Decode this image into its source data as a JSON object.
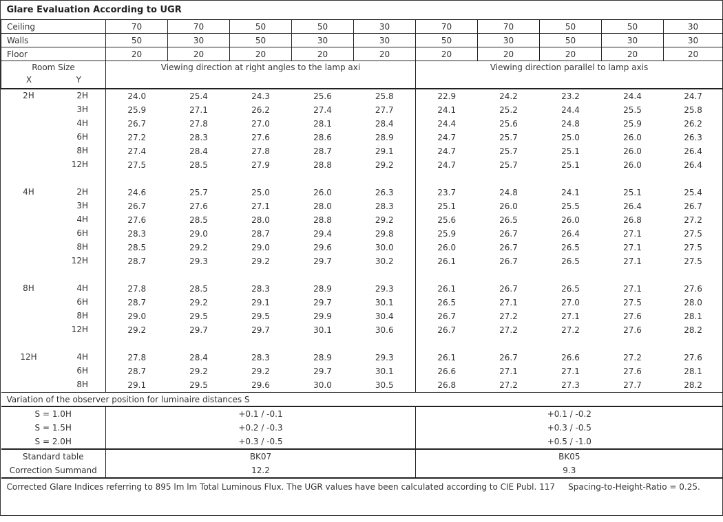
{
  "title": "Glare Evaluation According to UGR",
  "reflectances": [
    {
      "label": "Ceiling",
      "values": [
        "70",
        "70",
        "50",
        "50",
        "30",
        "70",
        "70",
        "50",
        "50",
        "30"
      ]
    },
    {
      "label": "Walls",
      "values": [
        "50",
        "30",
        "50",
        "30",
        "30",
        "50",
        "30",
        "50",
        "30",
        "30"
      ]
    },
    {
      "label": "Floor",
      "values": [
        "20",
        "20",
        "20",
        "20",
        "20",
        "20",
        "20",
        "20",
        "20",
        "20"
      ]
    }
  ],
  "header": {
    "room_size": "Room Size",
    "x": "X",
    "y": "Y",
    "perpendicular": "Viewing direction at right angles to the lamp axi",
    "parallel": "Viewing direction parallel to lamp axis"
  },
  "blocks": [
    {
      "x": "2H",
      "rows": [
        {
          "y": "2H",
          "values": [
            "24.0",
            "25.4",
            "24.3",
            "25.6",
            "25.8",
            "22.9",
            "24.2",
            "23.2",
            "24.4",
            "24.7"
          ]
        },
        {
          "y": "3H",
          "values": [
            "25.9",
            "27.1",
            "26.2",
            "27.4",
            "27.7",
            "24.1",
            "25.2",
            "24.4",
            "25.5",
            "25.8"
          ]
        },
        {
          "y": "4H",
          "values": [
            "26.7",
            "27.8",
            "27.0",
            "28.1",
            "28.4",
            "24.4",
            "25.6",
            "24.8",
            "25.9",
            "26.2"
          ]
        },
        {
          "y": "6H",
          "values": [
            "27.2",
            "28.3",
            "27.6",
            "28.6",
            "28.9",
            "24.7",
            "25.7",
            "25.0",
            "26.0",
            "26.3"
          ]
        },
        {
          "y": "8H",
          "values": [
            "27.4",
            "28.4",
            "27.8",
            "28.7",
            "29.1",
            "24.7",
            "25.7",
            "25.1",
            "26.0",
            "26.4"
          ]
        },
        {
          "y": "12H",
          "values": [
            "27.5",
            "28.5",
            "27.9",
            "28.8",
            "29.2",
            "24.7",
            "25.7",
            "25.1",
            "26.0",
            "26.4"
          ]
        }
      ]
    },
    {
      "x": "4H",
      "rows": [
        {
          "y": "2H",
          "values": [
            "24.6",
            "25.7",
            "25.0",
            "26.0",
            "26.3",
            "23.7",
            "24.8",
            "24.1",
            "25.1",
            "25.4"
          ]
        },
        {
          "y": "3H",
          "values": [
            "26.7",
            "27.6",
            "27.1",
            "28.0",
            "28.3",
            "25.1",
            "26.0",
            "25.5",
            "26.4",
            "26.7"
          ]
        },
        {
          "y": "4H",
          "values": [
            "27.6",
            "28.5",
            "28.0",
            "28.8",
            "29.2",
            "25.6",
            "26.5",
            "26.0",
            "26.8",
            "27.2"
          ]
        },
        {
          "y": "6H",
          "values": [
            "28.3",
            "29.0",
            "28.7",
            "29.4",
            "29.8",
            "25.9",
            "26.7",
            "26.4",
            "27.1",
            "27.5"
          ]
        },
        {
          "y": "8H",
          "values": [
            "28.5",
            "29.2",
            "29.0",
            "29.6",
            "30.0",
            "26.0",
            "26.7",
            "26.5",
            "27.1",
            "27.5"
          ]
        },
        {
          "y": "12H",
          "values": [
            "28.7",
            "29.3",
            "29.2",
            "29.7",
            "30.2",
            "26.1",
            "26.7",
            "26.5",
            "27.1",
            "27.5"
          ]
        }
      ]
    },
    {
      "x": "8H",
      "rows": [
        {
          "y": "4H",
          "values": [
            "27.8",
            "28.5",
            "28.3",
            "28.9",
            "29.3",
            "26.1",
            "26.7",
            "26.5",
            "27.1",
            "27.6"
          ]
        },
        {
          "y": "6H",
          "values": [
            "28.7",
            "29.2",
            "29.1",
            "29.7",
            "30.1",
            "26.5",
            "27.1",
            "27.0",
            "27.5",
            "28.0"
          ]
        },
        {
          "y": "8H",
          "values": [
            "29.0",
            "29.5",
            "29.5",
            "29.9",
            "30.4",
            "26.7",
            "27.2",
            "27.1",
            "27.6",
            "28.1"
          ]
        },
        {
          "y": "12H",
          "values": [
            "29.2",
            "29.7",
            "29.7",
            "30.1",
            "30.6",
            "26.7",
            "27.2",
            "27.2",
            "27.6",
            "28.2"
          ]
        }
      ]
    },
    {
      "x": "12H",
      "rows": [
        {
          "y": "4H",
          "values": [
            "27.8",
            "28.4",
            "28.3",
            "28.9",
            "29.3",
            "26.1",
            "26.7",
            "26.6",
            "27.2",
            "27.6"
          ]
        },
        {
          "y": "6H",
          "values": [
            "28.7",
            "29.2",
            "29.2",
            "29.7",
            "30.1",
            "26.6",
            "27.1",
            "27.1",
            "27.6",
            "28.1"
          ]
        },
        {
          "y": "8H",
          "values": [
            "29.1",
            "29.5",
            "29.6",
            "30.0",
            "30.5",
            "26.8",
            "27.2",
            "27.3",
            "27.7",
            "28.2"
          ]
        }
      ]
    }
  ],
  "variation": {
    "title": "Variation of the observer position for luminaire distances S",
    "rows": [
      {
        "label": "S = 1.0H",
        "perpendicular": "+0.1 / -0.1",
        "parallel": "+0.1 / -0.2"
      },
      {
        "label": "S = 1.5H",
        "perpendicular": "+0.2 / -0.3",
        "parallel": "+0.3 / -0.5"
      },
      {
        "label": "S = 2.0H",
        "perpendicular": "+0.3 / -0.5",
        "parallel": "+0.5 / -1.0"
      }
    ]
  },
  "standard": [
    {
      "label": "Standard table",
      "perpendicular": "BK07",
      "parallel": "BK05"
    },
    {
      "label": "Correction Summand",
      "perpendicular": "12.2",
      "parallel": "9.3"
    }
  ],
  "footer": "Corrected Glare Indices referring to 895 lm lm Total Luminous Flux. The UGR values have been calculated according to CIE Publ. 117     Spacing-to-Height-Ratio = 0.25."
}
